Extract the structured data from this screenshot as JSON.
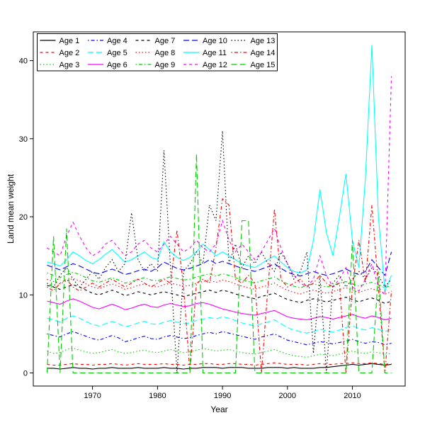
{
  "figure": {
    "background": "#ffffff"
  },
  "chart_data": {
    "type": "line",
    "title": "",
    "xlabel": "Year",
    "ylabel": "Land mean weight",
    "xlim": [
      1963,
      2016
    ],
    "ylim": [
      0,
      42
    ],
    "xticks": [
      1970,
      1980,
      1990,
      2000,
      2010
    ],
    "yticks": [
      0,
      10,
      20,
      30,
      40
    ],
    "grid": false,
    "legend": {
      "position": "top-left",
      "ncol": 5,
      "nrow": 3
    },
    "x": [
      1963,
      1964,
      1965,
      1966,
      1967,
      1968,
      1969,
      1970,
      1971,
      1972,
      1973,
      1974,
      1975,
      1976,
      1977,
      1978,
      1979,
      1980,
      1981,
      1982,
      1983,
      1984,
      1985,
      1986,
      1987,
      1988,
      1989,
      1990,
      1991,
      1992,
      1993,
      1994,
      1995,
      1996,
      1997,
      1998,
      1999,
      2000,
      2001,
      2002,
      2003,
      2004,
      2005,
      2006,
      2007,
      2008,
      2009,
      2010,
      2011,
      2012,
      2013,
      2014,
      2015,
      2016
    ],
    "series": [
      {
        "name": "Age 1",
        "color": "#000000",
        "linetype": "solid",
        "values": [
          0.6,
          0.6,
          0.5,
          0.6,
          0.7,
          0.6,
          0.6,
          0.5,
          0.6,
          0.6,
          0.7,
          0.6,
          0.6,
          0.6,
          0.7,
          0.6,
          0.6,
          0.6,
          0.7,
          0.6,
          0.6,
          0.5,
          0.6,
          0.6,
          0.7,
          0.7,
          0.7,
          0.6,
          0.7,
          0.7,
          0.7,
          0.6,
          0.6,
          0.6,
          0.7,
          0.7,
          0.7,
          0.6,
          0.7,
          0.6,
          0.6,
          0.6,
          0.7,
          0.7,
          0.8,
          0.9,
          1.0,
          1.1,
          1.0,
          1.1,
          1.2,
          1.1,
          1.0,
          1.1
        ]
      },
      {
        "name": "Age 2",
        "color": "#ff0000",
        "linetype": "dashed",
        "values": [
          1.1,
          1.0,
          1.0,
          1.1,
          1.2,
          1.1,
          1.1,
          1.0,
          1.1,
          1.1,
          1.2,
          1.1,
          1.0,
          1.1,
          1.2,
          1.1,
          1.1,
          1.1,
          1.2,
          1.1,
          1.1,
          1.0,
          1.1,
          1.1,
          1.2,
          1.2,
          1.1,
          1.1,
          1.2,
          1.2,
          1.1,
          1.1,
          1.0,
          1.1,
          1.2,
          1.3,
          1.2,
          1.1,
          1.1,
          1.1,
          1.0,
          1.1,
          1.2,
          1.1,
          1.1,
          1.2,
          1.2,
          1.3,
          1.2,
          1.2,
          1.3,
          1.2,
          1.1,
          1.2
        ]
      },
      {
        "name": "Age 3",
        "color": "#00cd00",
        "linetype": "dotted",
        "values": [
          2.8,
          2.5,
          2.6,
          3.0,
          3.2,
          2.9,
          2.7,
          2.5,
          2.6,
          2.8,
          3.0,
          2.7,
          2.5,
          2.6,
          2.8,
          2.9,
          2.7,
          2.6,
          2.8,
          3.0,
          2.8,
          2.6,
          2.7,
          2.9,
          3.1,
          3.0,
          2.8,
          2.9,
          3.0,
          2.8,
          2.6,
          2.5,
          2.4,
          2.6,
          2.8,
          3.0,
          2.7,
          2.4,
          2.2,
          2.1,
          2.0,
          2.2,
          2.4,
          2.3,
          2.2,
          2.4,
          2.6,
          2.8,
          2.6,
          2.5,
          2.7,
          2.6,
          2.4,
          2.5
        ]
      },
      {
        "name": "Age 4",
        "color": "#0000ff",
        "linetype": "dotdash",
        "values": [
          5.0,
          4.8,
          4.6,
          5.0,
          5.3,
          5.0,
          4.7,
          4.4,
          4.2,
          4.5,
          4.8,
          4.5,
          4.0,
          4.2,
          4.5,
          4.7,
          4.4,
          4.3,
          4.6,
          4.8,
          4.6,
          4.4,
          4.5,
          4.8,
          5.0,
          5.2,
          5.0,
          5.3,
          5.1,
          4.9,
          4.7,
          4.5,
          4.3,
          4.6,
          4.8,
          5.0,
          4.6,
          4.2,
          4.0,
          3.8,
          3.6,
          3.8,
          4.0,
          3.9,
          3.7,
          3.9,
          4.1,
          4.3,
          4.0,
          3.8,
          4.0,
          3.9,
          3.6,
          3.8
        ]
      },
      {
        "name": "Age 5",
        "color": "#00ffff",
        "linetype": "longdash",
        "values": [
          7.0,
          6.8,
          6.5,
          7.0,
          7.3,
          7.0,
          6.6,
          6.2,
          6.0,
          6.3,
          6.6,
          6.3,
          5.9,
          6.1,
          6.4,
          6.6,
          6.3,
          6.2,
          6.5,
          6.7,
          6.5,
          6.3,
          6.4,
          6.7,
          6.9,
          7.1,
          6.9,
          7.2,
          7.0,
          6.7,
          6.4,
          6.2,
          6.0,
          6.3,
          6.5,
          6.8,
          6.3,
          5.8,
          5.5,
          5.3,
          5.1,
          5.3,
          5.6,
          5.4,
          5.2,
          5.5,
          5.8,
          6.0,
          5.7,
          5.5,
          5.8,
          5.6,
          5.3,
          5.6
        ]
      },
      {
        "name": "Age 6",
        "color": "#ff00ff",
        "linetype": "solid",
        "values": [
          9.2,
          9.0,
          8.8,
          9.2,
          9.5,
          9.2,
          8.8,
          8.4,
          8.2,
          8.5,
          8.8,
          8.5,
          8.1,
          8.3,
          8.6,
          8.8,
          8.5,
          8.4,
          8.7,
          8.9,
          8.7,
          8.5,
          8.6,
          8.9,
          9.0,
          8.8,
          8.5,
          8.2,
          8.0,
          7.8,
          7.6,
          7.5,
          7.4,
          7.6,
          7.8,
          8.0,
          7.6,
          7.2,
          7.0,
          6.9,
          6.8,
          7.0,
          7.2,
          7.1,
          6.9,
          7.1,
          7.3,
          7.5,
          7.2,
          7.0,
          7.3,
          7.1,
          6.8,
          7.0
        ]
      },
      {
        "name": "Age 7",
        "color": "#000000",
        "linetype": "dashed",
        "values": [
          11.2,
          11.0,
          10.7,
          11.0,
          11.3,
          11.0,
          10.6,
          10.2,
          10.0,
          10.3,
          10.6,
          10.3,
          9.9,
          10.1,
          10.4,
          10.2,
          10.0,
          10.2,
          10.4,
          10.2,
          10.0,
          9.8,
          10.0,
          10.2,
          10.4,
          10.6,
          10.3,
          10.6,
          10.4,
          10.1,
          9.9,
          9.7,
          9.5,
          9.8,
          10.0,
          10.2,
          9.8,
          9.4,
          9.2,
          9.0,
          9.3,
          9.5,
          9.3,
          9.1,
          9.3,
          9.5,
          9.7,
          9.4,
          9.1,
          9.4,
          9.6,
          9.3,
          8.9,
          9.2
        ]
      },
      {
        "name": "Age 8",
        "color": "#ff0000",
        "linetype": "dotted",
        "values": [
          12.0,
          11.7,
          11.4,
          11.8,
          12.1,
          11.8,
          11.4,
          11.0,
          10.8,
          11.1,
          11.4,
          11.1,
          10.7,
          10.9,
          11.2,
          11.4,
          11.1,
          11.0,
          11.3,
          11.5,
          11.3,
          11.1,
          11.2,
          11.5,
          11.7,
          11.9,
          11.6,
          11.9,
          11.7,
          11.4,
          11.1,
          10.9,
          10.7,
          11.0,
          11.2,
          11.5,
          11.0,
          10.6,
          10.3,
          10.1,
          10.4,
          10.6,
          10.4,
          10.2,
          10.4,
          10.7,
          10.9,
          10.6,
          10.3,
          10.6,
          10.8,
          10.5,
          10.1,
          10.4
        ]
      },
      {
        "name": "Age 9",
        "color": "#00cd00",
        "linetype": "dotdash",
        "values": [
          12.8,
          12.5,
          12.2,
          12.6,
          12.9,
          12.6,
          12.2,
          11.8,
          11.6,
          11.9,
          12.2,
          11.9,
          11.5,
          11.7,
          12.0,
          12.2,
          11.9,
          11.8,
          12.1,
          12.3,
          12.1,
          11.9,
          12.0,
          12.3,
          12.5,
          12.7,
          12.4,
          12.7,
          12.5,
          12.2,
          11.9,
          11.7,
          11.5,
          11.8,
          12.0,
          12.3,
          11.8,
          11.4,
          11.1,
          10.9,
          11.2,
          11.4,
          11.2,
          11.0,
          11.2,
          11.5,
          11.7,
          11.4,
          11.1,
          11.4,
          11.6,
          11.3,
          10.9,
          11.2
        ]
      },
      {
        "name": "Age 10",
        "color": "#0000ff",
        "linetype": "longdash",
        "values": [
          13.8,
          13.5,
          13.2,
          13.6,
          14.0,
          13.7,
          13.3,
          12.9,
          12.7,
          13.0,
          13.3,
          13.0,
          12.6,
          12.8,
          13.1,
          13.3,
          13.0,
          13.5,
          14.2,
          13.8,
          13.4,
          13.2,
          13.4,
          13.7,
          14.0,
          14.5,
          14.0,
          14.3,
          14.0,
          13.7,
          13.4,
          13.2,
          13.0,
          13.3,
          13.6,
          14.0,
          13.4,
          12.9,
          12.6,
          12.4,
          12.7,
          13.0,
          12.7,
          12.5,
          12.7,
          13.0,
          13.3,
          12.9,
          12.6,
          13.0,
          14.5,
          13.5,
          12.5,
          15.5
        ]
      },
      {
        "name": "Age 11",
        "color": "#00ffff",
        "linetype": "solid",
        "values": [
          14.2,
          14.0,
          13.7,
          14.5,
          15.5,
          15.0,
          14.4,
          14.0,
          14.5,
          15.2,
          15.8,
          15.0,
          14.2,
          14.5,
          15.0,
          15.5,
          14.8,
          14.5,
          16.8,
          15.5,
          14.8,
          14.4,
          14.8,
          15.5,
          16.5,
          15.8,
          15.0,
          15.5,
          15.0,
          14.5,
          14.0,
          13.7,
          13.5,
          14.0,
          14.5,
          15.0,
          14.2,
          13.5,
          13.0,
          12.8,
          13.2,
          17.0,
          23.5,
          18.0,
          15.0,
          20.0,
          25.5,
          17.0,
          13.5,
          25.0,
          42.0,
          20.0,
          10.5,
          12.5
        ]
      },
      {
        "name": "Age 12",
        "color": "#ff00ff",
        "linetype": "dashed",
        "values": [
          16.0,
          15.5,
          15.0,
          17.5,
          19.3,
          17.5,
          16.0,
          15.0,
          15.5,
          16.5,
          17.0,
          16.0,
          15.0,
          15.5,
          16.5,
          17.0,
          16.0,
          15.5,
          16.5,
          17.5,
          16.5,
          15.5,
          16.0,
          17.0,
          16.0,
          15.5,
          16.5,
          19.5,
          17.0,
          15.5,
          16.5,
          15.5,
          14.5,
          15.5,
          17.0,
          18.5,
          16.0,
          14.0,
          12.5,
          11.5,
          11.0,
          12.0,
          15.0,
          12.5,
          11.0,
          12.0,
          13.5,
          11.0,
          10.5,
          12.0,
          14.0,
          11.0,
          10.0,
          38.0
        ]
      },
      {
        "name": "Age 13",
        "color": "#000000",
        "linetype": "dotted",
        "values": [
          11.5,
          11.0,
          12.5,
          13.5,
          12.0,
          11.0,
          12.0,
          13.0,
          12.0,
          13.5,
          14.5,
          13.0,
          14.0,
          20.5,
          14.5,
          13.0,
          14.0,
          13.0,
          28.5,
          13.5,
          0.0,
          13.0,
          14.0,
          15.5,
          14.0,
          21.5,
          19.5,
          31.0,
          14.0,
          16.5,
          13.5,
          15.0,
          14.0,
          15.5,
          14.0,
          13.0,
          15.5,
          14.0,
          12.0,
          13.0,
          15.5,
          2.5,
          12.5,
          0.0,
          11.5,
          12.5,
          11.0,
          12.0,
          13.0,
          12.0,
          13.5,
          12.5,
          11.0,
          12.0
        ]
      },
      {
        "name": "Age 14",
        "color": "#ff0000",
        "linetype": "dotdash",
        "values": [
          11.0,
          10.5,
          11.5,
          12.0,
          11.0,
          10.5,
          11.0,
          11.5,
          11.0,
          11.5,
          12.0,
          11.5,
          11.0,
          11.5,
          12.0,
          11.5,
          11.0,
          11.5,
          12.0,
          11.5,
          18.3,
          11.0,
          0.0,
          11.5,
          12.0,
          11.5,
          16.0,
          22.3,
          21.5,
          12.0,
          11.5,
          12.5,
          11.5,
          0.0,
          11.0,
          21.0,
          12.0,
          11.0,
          11.5,
          12.0,
          11.0,
          11.5,
          12.5,
          11.5,
          11.0,
          11.5,
          0.0,
          11.0,
          17.0,
          11.5,
          21.5,
          11.0,
          0.0,
          10.5
        ]
      },
      {
        "name": "Age 15",
        "color": "#00cd00",
        "linetype": "longdash",
        "values": [
          0,
          17.5,
          0,
          18.5,
          0,
          0,
          0,
          0,
          0,
          0,
          0,
          0,
          0,
          0,
          0,
          0,
          0,
          0,
          0,
          0,
          0,
          0,
          0,
          28.0,
          0,
          0,
          0,
          0,
          0,
          0,
          19.5,
          19.5,
          0,
          0,
          0,
          0,
          0,
          0,
          0,
          0,
          0,
          0,
          0,
          0,
          0,
          0,
          0,
          17.0,
          0,
          0,
          0,
          13.0,
          0,
          0
        ]
      }
    ]
  }
}
